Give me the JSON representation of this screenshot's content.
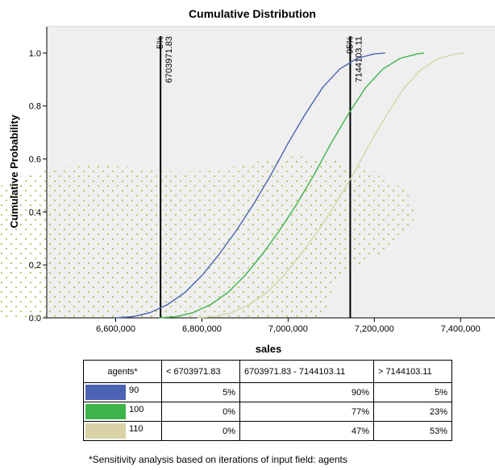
{
  "chart_data": {
    "type": "line",
    "title": "Cumulative Distribution",
    "xlabel": "sales",
    "ylabel": "Cumulative Probability",
    "xlim": [
      6440000,
      7480000
    ],
    "ylim": [
      0,
      1.1
    ],
    "x_ticks": [
      6600000,
      6800000,
      7000000,
      7200000,
      7400000
    ],
    "x_tick_labels": [
      "6,600,000",
      "6,800,000",
      "7,000,000",
      "7,200,000",
      "7,400,000"
    ],
    "y_ticks": [
      0,
      0.2,
      0.4,
      0.6,
      0.8,
      1.0
    ],
    "y_tick_labels": [
      "0.0",
      "0.2",
      "0.4",
      "0.6",
      "0.8",
      "1.0"
    ],
    "grid": false,
    "series": [
      {
        "name": "90",
        "color": "#4b63b2",
        "x": [
          6600000,
          6640000,
          6680000,
          6720000,
          6760000,
          6800000,
          6840000,
          6880000,
          6920000,
          6960000,
          7000000,
          7040000,
          7080000,
          7120000,
          7160000,
          7200000,
          7225000
        ],
        "y": [
          0,
          0.005,
          0.02,
          0.05,
          0.095,
          0.16,
          0.24,
          0.33,
          0.43,
          0.54,
          0.66,
          0.77,
          0.87,
          0.94,
          0.98,
          0.997,
          1.0
        ]
      },
      {
        "name": "100",
        "color": "#3cb44a",
        "x": [
          6700000,
          6740000,
          6780000,
          6820000,
          6860000,
          6900000,
          6940000,
          6980000,
          7020000,
          7060000,
          7100000,
          7140000,
          7180000,
          7220000,
          7260000,
          7300000,
          7315000
        ],
        "y": [
          0,
          0.005,
          0.02,
          0.05,
          0.095,
          0.16,
          0.24,
          0.33,
          0.43,
          0.54,
          0.66,
          0.77,
          0.87,
          0.94,
          0.98,
          0.997,
          1.0
        ]
      },
      {
        "name": "110",
        "color": "#d8d2a6",
        "x": [
          6790000,
          6830000,
          6870000,
          6910000,
          6950000,
          6990000,
          7030000,
          7070000,
          7110000,
          7150000,
          7190000,
          7230000,
          7270000,
          7310000,
          7350000,
          7390000,
          7410000
        ],
        "y": [
          0,
          0.005,
          0.02,
          0.05,
          0.095,
          0.16,
          0.24,
          0.33,
          0.43,
          0.54,
          0.66,
          0.77,
          0.87,
          0.94,
          0.98,
          0.997,
          1.0
        ]
      }
    ],
    "reference_lines": [
      {
        "x": 6703971.83,
        "percent_label": "5%",
        "value_label": "6703971.83"
      },
      {
        "x": 7144103.11,
        "percent_label": "95%",
        "value_label": "7144103.11"
      }
    ],
    "plot_background": "#efefef",
    "pattern_color": "#b7c96a"
  },
  "table": {
    "headers": [
      "agents*",
      "< 6703971.83",
      "6703971.83 - 7144103.11",
      "> 7144103.11"
    ],
    "rows": [
      {
        "label": "90",
        "color": "#4b63b2",
        "values": [
          "5%",
          "90%",
          "5%"
        ]
      },
      {
        "label": "100",
        "color": "#3cb44a",
        "values": [
          "0%",
          "77%",
          "23%"
        ]
      },
      {
        "label": "110",
        "color": "#d8d2a6",
        "values": [
          "0%",
          "47%",
          "53%"
        ]
      }
    ]
  },
  "footnote": "*Sensitivity analysis based on iterations of input field: agents"
}
